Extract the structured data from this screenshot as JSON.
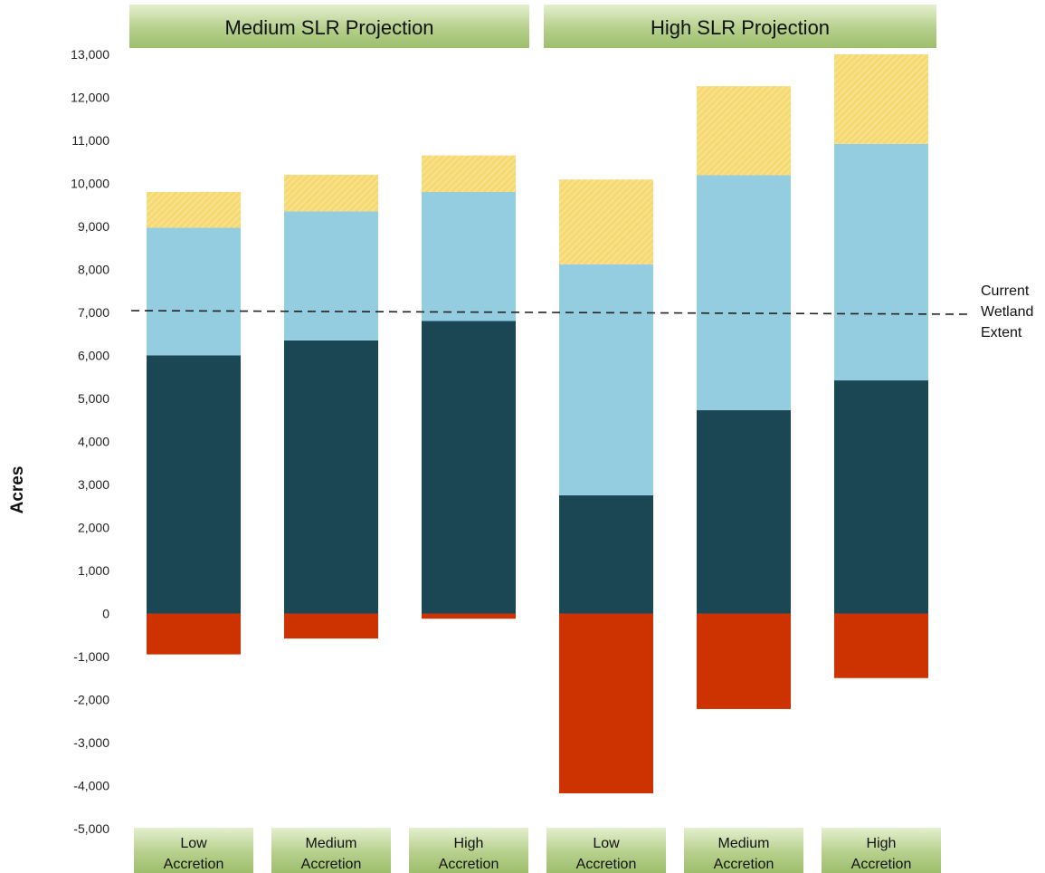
{
  "chart_data": {
    "type": "bar",
    "stacked": true,
    "ylabel": "Acres",
    "ylim": [
      -5000,
      13000
    ],
    "yticks": [
      "13,000",
      "12,000",
      "11,000",
      "10,000",
      "9,000",
      "8,000",
      "7,000",
      "6,000",
      "5,000",
      "4,000",
      "3,000",
      "2,000",
      "1,000",
      "0",
      "-1,000",
      "-2,000",
      "-3,000",
      "-4,000",
      "-5,000"
    ],
    "grid": false,
    "legend": "none",
    "groups": [
      {
        "label": "Medium SLR Projection",
        "categories": [
          0,
          1,
          2
        ]
      },
      {
        "label": "High SLR Projection",
        "categories": [
          3,
          4,
          5
        ]
      }
    ],
    "categories": [
      [
        "Low",
        "Accretion"
      ],
      [
        "Medium",
        "Accretion"
      ],
      [
        "High",
        "Accretion"
      ],
      [
        "Low",
        "Accretion"
      ],
      [
        "Medium",
        "Accretion"
      ],
      [
        "High",
        "Accretion"
      ]
    ],
    "series": [
      {
        "color": "#1b4653",
        "values": [
          6000,
          6350,
          6800,
          2750,
          4730,
          5420
        ]
      },
      {
        "color": "#95cde0",
        "values": [
          2970,
          3000,
          3000,
          5370,
          5460,
          5500
        ]
      },
      {
        "color": "#f6d971",
        "pattern": "hatch",
        "values": [
          830,
          850,
          850,
          1970,
          2070,
          2080
        ]
      },
      {
        "color": "#cc3300",
        "values": [
          -950,
          -580,
          -120,
          -4180,
          -2220,
          -1500
        ]
      }
    ],
    "reference_line": {
      "value": 7000,
      "style": "dashed",
      "label": [
        "Current",
        "Wetland",
        "Extent"
      ]
    }
  }
}
